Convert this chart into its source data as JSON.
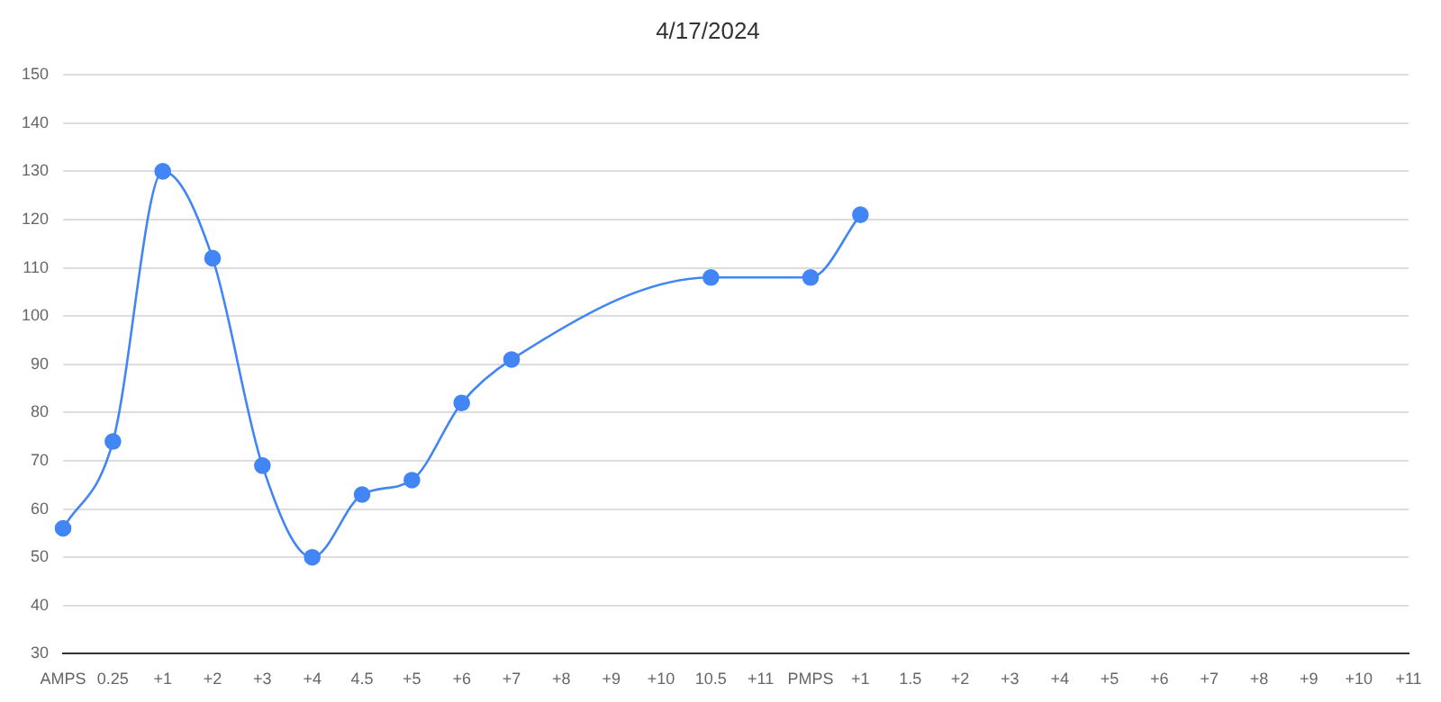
{
  "chart_data": {
    "type": "line",
    "title": "4/17/2024",
    "categories": [
      "AMPS",
      "0.25",
      "+1",
      "+2",
      "+3",
      "+4",
      "4.5",
      "+5",
      "+6",
      "+7",
      "+8",
      "+9",
      "+10",
      "10.5",
      "+11",
      "PMPS",
      "+1",
      "1.5",
      "+2",
      "+3",
      "+4",
      "+5",
      "+6",
      "+7",
      "+8",
      "+9",
      "+10",
      "+11"
    ],
    "series": [
      {
        "color": "#4285f4",
        "values": [
          56,
          74,
          130,
          112,
          69,
          50,
          63,
          66,
          82,
          91,
          null,
          null,
          null,
          108,
          null,
          108,
          121,
          null,
          null,
          null,
          null,
          null,
          null,
          null,
          null,
          null,
          null,
          null
        ]
      }
    ],
    "ylim": [
      30,
      150
    ],
    "yticks": [
      30,
      40,
      50,
      60,
      70,
      80,
      90,
      100,
      110,
      120,
      130,
      140,
      150
    ],
    "grid": "y",
    "legend": false,
    "marker": "circle"
  }
}
